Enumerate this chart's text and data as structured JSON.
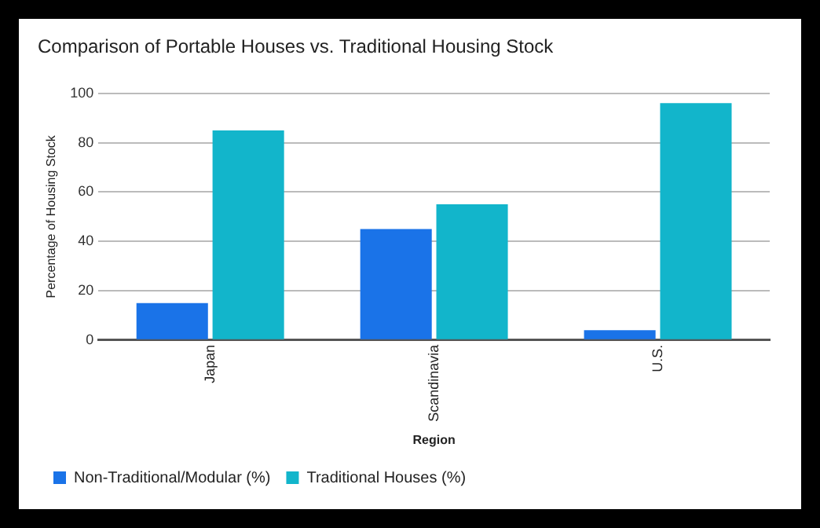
{
  "chart_data": {
    "type": "bar",
    "title": "Comparison of Portable Houses vs. Traditional Housing Stock",
    "xlabel": "Region",
    "ylabel": "Percentage of Housing Stock",
    "categories": [
      "Japan",
      "Scandinavia",
      "U.S."
    ],
    "series": [
      {
        "name": "Non-Traditional/Modular (%)",
        "color": "#1a73e8",
        "values": [
          15,
          45,
          4
        ]
      },
      {
        "name": "Traditional Houses (%)",
        "color": "#12b5cb",
        "values": [
          85,
          55,
          96
        ]
      }
    ],
    "ylim": [
      0,
      100
    ],
    "yticks": [
      0,
      20,
      40,
      60,
      80,
      100
    ],
    "grid": "y",
    "legend": "bottom"
  }
}
